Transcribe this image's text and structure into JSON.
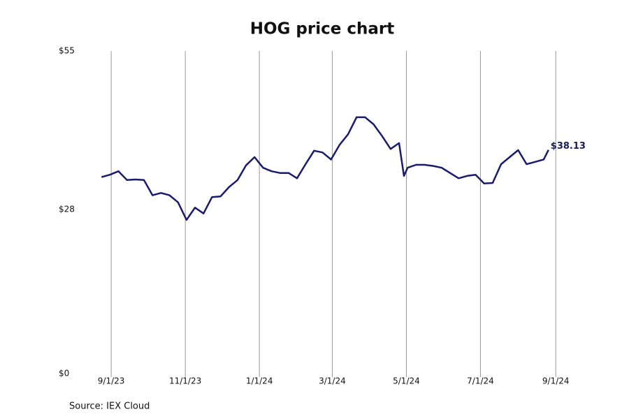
{
  "chart_data": {
    "type": "line",
    "title": "HOG price chart",
    "source": "Source: IEX Cloud",
    "x": [
      "2023-08-24",
      "2023-08-31",
      "2023-09-07",
      "2023-09-14",
      "2023-09-21",
      "2023-09-28",
      "2023-10-05",
      "2023-10-12",
      "2023-10-19",
      "2023-10-26",
      "2023-11-02",
      "2023-11-09",
      "2023-11-16",
      "2023-11-23",
      "2023-11-30",
      "2023-12-07",
      "2023-12-14",
      "2023-12-21",
      "2023-12-28",
      "2024-01-04",
      "2024-01-11",
      "2024-01-18",
      "2024-01-25",
      "2024-02-01",
      "2024-02-08",
      "2024-02-15",
      "2024-02-22",
      "2024-02-29",
      "2024-03-07",
      "2024-03-14",
      "2024-03-21",
      "2024-03-28",
      "2024-04-04",
      "2024-04-11",
      "2024-04-18",
      "2024-04-25",
      "2024-04-29",
      "2024-05-02",
      "2024-05-09",
      "2024-05-16",
      "2024-05-23",
      "2024-05-30",
      "2024-06-06",
      "2024-06-13",
      "2024-06-20",
      "2024-06-27",
      "2024-07-04",
      "2024-07-11",
      "2024-07-18",
      "2024-07-25",
      "2024-08-01",
      "2024-08-08",
      "2024-08-15",
      "2024-08-22",
      "2024-08-26"
    ],
    "series": [
      {
        "name": "HOG",
        "color": "#1a1a6e",
        "values": [
          33.5,
          33.9,
          34.5,
          33.0,
          33.1,
          33.0,
          30.4,
          30.8,
          30.4,
          29.2,
          26.2,
          28.3,
          27.3,
          30.1,
          30.2,
          31.8,
          33.0,
          35.5,
          36.9,
          35.1,
          34.5,
          34.2,
          34.2,
          33.3,
          35.7,
          38.0,
          37.7,
          36.5,
          39.0,
          40.8,
          43.7,
          43.7,
          42.5,
          40.5,
          38.3,
          39.3,
          33.7,
          35.1,
          35.6,
          35.6,
          35.4,
          35.1,
          34.2,
          33.3,
          33.7,
          33.9,
          32.4,
          32.5,
          35.7,
          36.9,
          38.1,
          35.7,
          36.1,
          36.5,
          38.13
        ]
      }
    ],
    "end_label": "$38.13",
    "xlim": [
      "2023-07-29",
      "2024-09-21"
    ],
    "xticks": [
      {
        "value": "2023-09-01",
        "label": "9/1/23"
      },
      {
        "value": "2023-11-01",
        "label": "11/1/23"
      },
      {
        "value": "2024-01-01",
        "label": "1/1/24"
      },
      {
        "value": "2024-03-01",
        "label": "3/1/24"
      },
      {
        "value": "2024-05-01",
        "label": "5/1/24"
      },
      {
        "value": "2024-07-01",
        "label": "7/1/24"
      },
      {
        "value": "2024-09-01",
        "label": "9/1/24"
      }
    ],
    "ylim": [
      0,
      55
    ],
    "yticks": [
      {
        "value": 0,
        "label": "$0"
      },
      {
        "value": 28,
        "label": "$28"
      },
      {
        "value": 55,
        "label": "$55"
      }
    ],
    "grid": "x"
  }
}
